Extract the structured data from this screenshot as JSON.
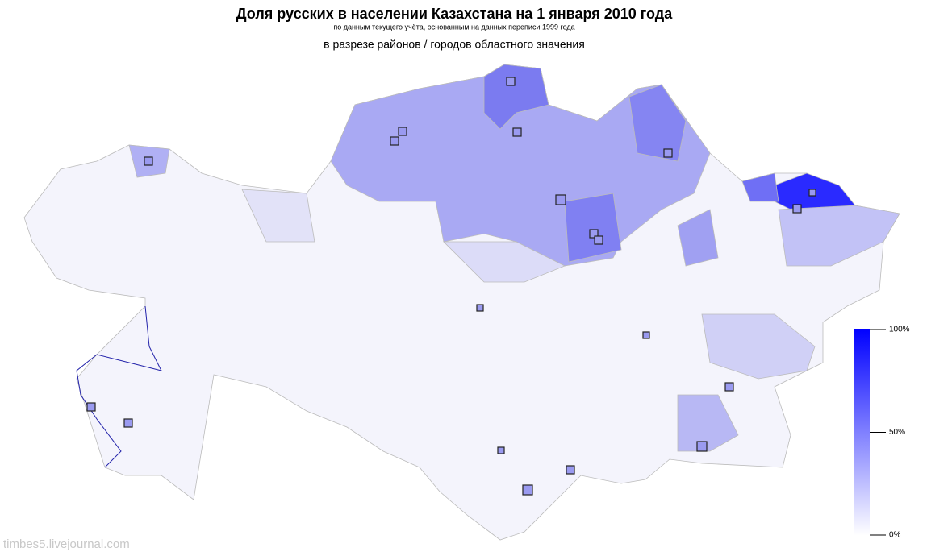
{
  "header": {
    "title": "Доля русских в населении Казахстана на 1 января 2010 года",
    "subtitle": "по данным текущего учёта, основанным на данных переписи 1999 года",
    "subtitle2": "в разрезе районов / городов областного значения"
  },
  "legend": {
    "lim": [
      0,
      100
    ],
    "colors": [
      "#ffffff",
      "#0000ff"
    ],
    "ticks": [
      {
        "value": 100,
        "label": "100%"
      },
      {
        "value": 50,
        "label": "50%"
      },
      {
        "value": 0,
        "label": "0%"
      }
    ]
  },
  "watermark": "timbes5.livejournal.com"
}
